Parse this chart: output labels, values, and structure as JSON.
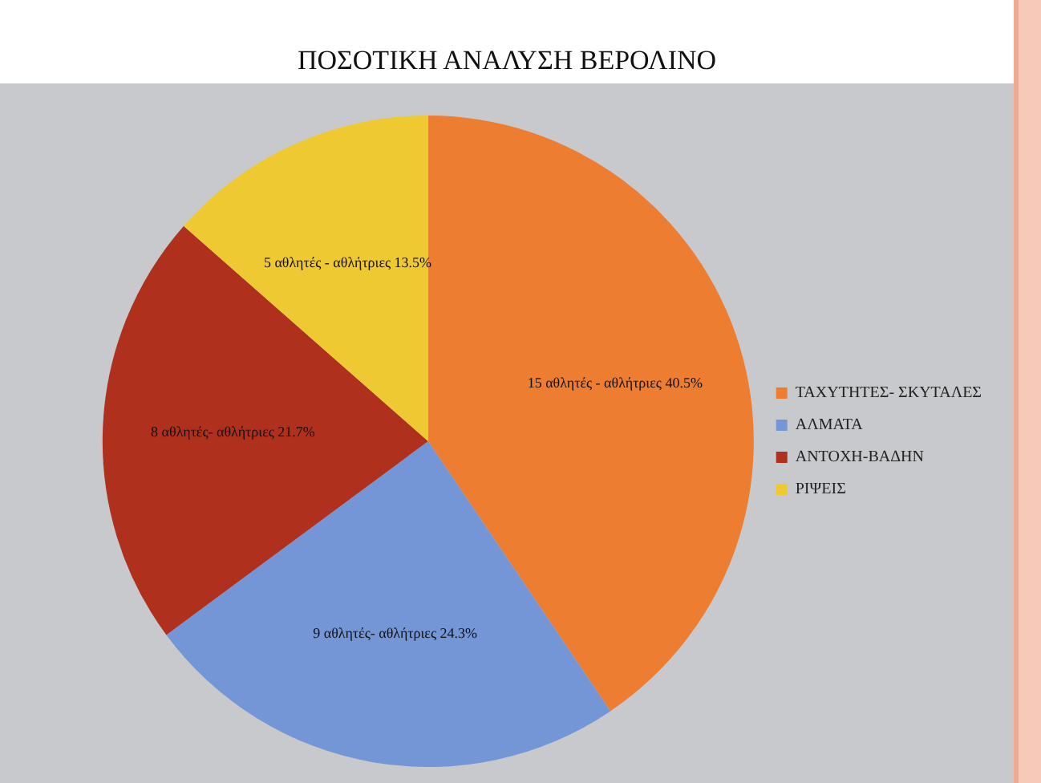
{
  "chart_data": {
    "type": "pie",
    "title": "ΠΟΣΟΤΙΚΗ ΑΝΑΛΥΣΗ ΒΕΡΟΛΙΝΟ",
    "categories": [
      "ΤΑΧΥΤΗΤΕΣ- ΣΚΥΤΑΛΕΣ",
      "ΑΛΜΑΤΑ",
      "ΑΝΤΟΧΗ-ΒΑΔΗΝ",
      "ΡΙΨΕΙΣ"
    ],
    "values": [
      15,
      9,
      8,
      5
    ],
    "colors": [
      "#ed7d31",
      "#7596d6",
      "#b0301e",
      "#eec932"
    ],
    "value_labels": [
      "15 αθλητές - αθλήτριες 40.5%",
      "9 αθλητές- αθλήτριες 24.3%",
      "8 αθλητές- αθλήτριες 21.7%",
      "5 αθλητές - αθλήτριες 13.5%"
    ],
    "legend": "right"
  }
}
